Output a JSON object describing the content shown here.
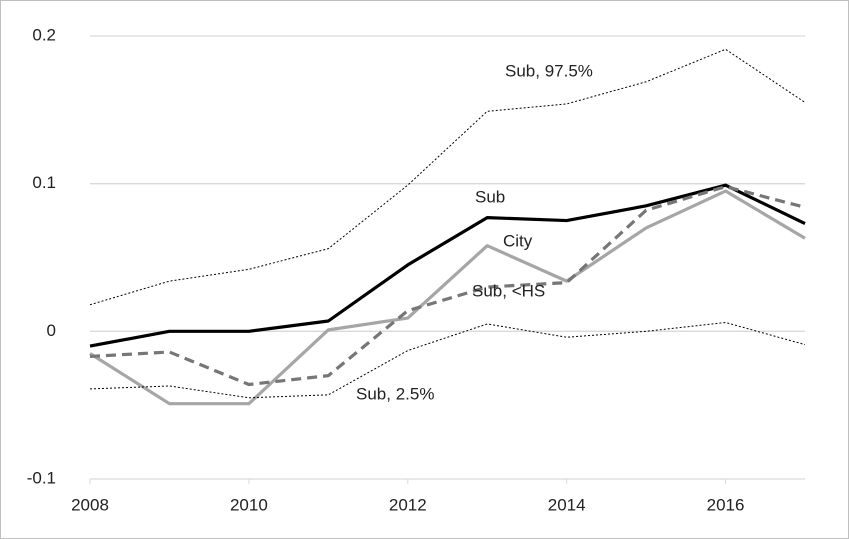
{
  "chart_data": {
    "type": "line",
    "x": [
      2008,
      2009,
      2010,
      2011,
      2012,
      2013,
      2014,
      2015,
      2016,
      2017
    ],
    "xlim": [
      2008,
      2017
    ],
    "xticks": [
      2008,
      2010,
      2012,
      2014,
      2016
    ],
    "ylim": [
      -0.1,
      0.2
    ],
    "yticks": [
      -0.1,
      0,
      0.1,
      0.2
    ],
    "grid": true,
    "series": [
      {
        "name": "Sub, 97.5%",
        "color": "#000000",
        "style": "dotted",
        "values": [
          0.018,
          0.034,
          0.042,
          0.056,
          0.099,
          0.149,
          0.154,
          0.169,
          0.191,
          0.155
        ]
      },
      {
        "name": "Sub",
        "color": "#000000",
        "style": "solid",
        "values": [
          -0.01,
          0.0,
          0.0,
          0.007,
          0.045,
          0.077,
          0.075,
          0.085,
          0.099,
          0.073
        ]
      },
      {
        "name": "City",
        "color": "#a6a6a6",
        "style": "solid",
        "values": [
          -0.015,
          -0.049,
          -0.049,
          0.001,
          0.009,
          0.058,
          0.034,
          0.07,
          0.095,
          0.063
        ]
      },
      {
        "name": "Sub, <HS",
        "color": "#767676",
        "style": "dashed",
        "values": [
          -0.017,
          -0.014,
          -0.036,
          -0.03,
          0.014,
          0.03,
          0.033,
          0.082,
          0.098,
          0.084
        ]
      },
      {
        "name": "Sub, 2.5%",
        "color": "#000000",
        "style": "dotted",
        "values": [
          -0.039,
          -0.037,
          -0.045,
          -0.043,
          -0.013,
          0.005,
          -0.004,
          0.0,
          0.006,
          -0.009
        ]
      }
    ]
  }
}
